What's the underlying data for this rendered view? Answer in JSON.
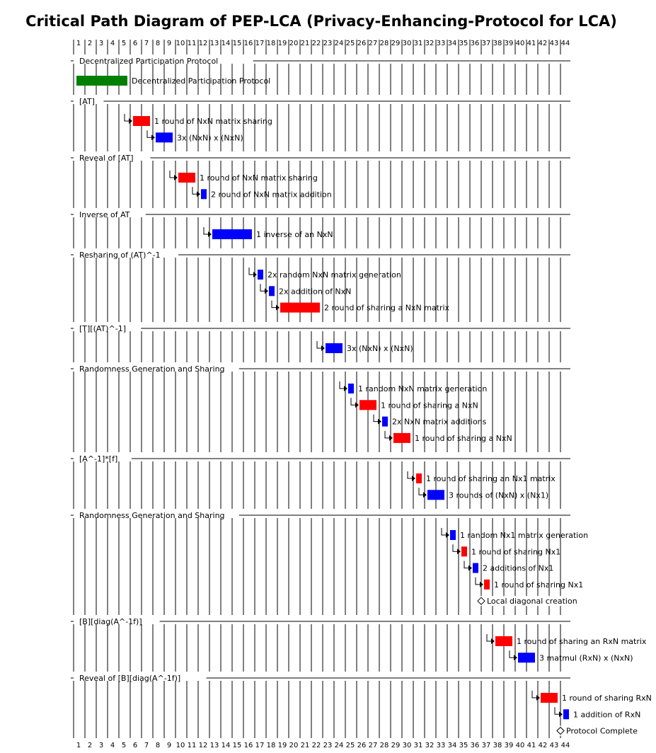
{
  "chart_data": {
    "type": "gantt",
    "title": "Critical Path Diagram of PEP-LCA (Privacy-Enhancing-Protocol for LCA)",
    "xlim": [
      1,
      44
    ],
    "ticks": [
      1,
      2,
      3,
      4,
      5,
      6,
      7,
      8,
      9,
      10,
      11,
      12,
      13,
      14,
      15,
      16,
      17,
      18,
      19,
      20,
      21,
      22,
      23,
      24,
      25,
      26,
      27,
      28,
      29,
      30,
      31,
      32,
      33,
      34,
      35,
      36,
      37,
      38,
      39,
      40,
      41,
      42,
      43,
      44
    ],
    "colors": {
      "communication": "#ff0000",
      "computation": "#0000ff",
      "participation": "#008000"
    },
    "sections": [
      {
        "name": "Decentralized Participation Protocol",
        "tasks": [
          {
            "label": "Decentralized Participation Protocol",
            "start": 1,
            "end": 5.5,
            "color": "#008000",
            "arrow": false
          }
        ]
      },
      {
        "name": "[AT]",
        "tasks": [
          {
            "label": "1 round of NxN matrix sharing",
            "start": 6,
            "end": 7.5,
            "color": "#ff0000",
            "arrow": true
          },
          {
            "label": "3x (NxN) x (NxN)",
            "start": 8,
            "end": 9.5,
            "color": "#0000ff",
            "arrow": true
          }
        ]
      },
      {
        "name": "Reveal of [AT]",
        "tasks": [
          {
            "label": "1 round of NxN matrix sharing",
            "start": 10,
            "end": 11.5,
            "color": "#ff0000",
            "arrow": true
          },
          {
            "label": "2 round of NxN matrix addition",
            "start": 12,
            "end": 12.5,
            "color": "#0000ff",
            "arrow": true
          }
        ]
      },
      {
        "name": "Inverse of AT",
        "tasks": [
          {
            "label": "1 inverse of an NxN",
            "start": 13,
            "end": 16.5,
            "color": "#0000ff",
            "arrow": true
          }
        ]
      },
      {
        "name": "Resharing of (AT)^-1",
        "tasks": [
          {
            "label": "2x random NxN matrix generation",
            "start": 17,
            "end": 17.5,
            "color": "#0000ff",
            "arrow": true
          },
          {
            "label": "2x addition of NxN",
            "start": 18,
            "end": 18.5,
            "color": "#0000ff",
            "arrow": true
          },
          {
            "label": "2 round of sharing a NxN matrix",
            "start": 19,
            "end": 22.5,
            "color": "#ff0000",
            "arrow": true
          }
        ]
      },
      {
        "name": "[T][(AT)^-1]",
        "tasks": [
          {
            "label": "3x (NxN) x (NxN)",
            "start": 23,
            "end": 24.5,
            "color": "#0000ff",
            "arrow": true
          }
        ]
      },
      {
        "name": "Randomness Generation and Sharing",
        "tasks": [
          {
            "label": "1 random NxN matrix generation",
            "start": 25,
            "end": 25.5,
            "color": "#0000ff",
            "arrow": true
          },
          {
            "label": "1 round of sharing a NxN",
            "start": 26,
            "end": 27.5,
            "color": "#ff0000",
            "arrow": true
          },
          {
            "label": "2x NxN matrix additions",
            "start": 28,
            "end": 28.5,
            "color": "#0000ff",
            "arrow": true
          },
          {
            "label": "1 round of sharing a NxN",
            "start": 29,
            "end": 30.5,
            "color": "#ff0000",
            "arrow": true
          }
        ]
      },
      {
        "name": "[A^-1]*[f]",
        "tasks": [
          {
            "label": "1 round of sharing an Nx1 matrix",
            "start": 31,
            "end": 31.5,
            "color": "#ff0000",
            "arrow": true
          },
          {
            "label": "3 rounds of (NxN) x (Nx1)",
            "start": 32,
            "end": 33.5,
            "color": "#0000ff",
            "arrow": true
          }
        ]
      },
      {
        "name": "Randomness Generation and Sharing",
        "tasks": [
          {
            "label": "1 random Nx1 matrix generation",
            "start": 34,
            "end": 34.5,
            "color": "#0000ff",
            "arrow": true
          },
          {
            "label": "1 round of sharing Nx1",
            "start": 35,
            "end": 35.5,
            "color": "#ff0000",
            "arrow": true
          },
          {
            "label": "2 additions of Nx1",
            "start": 36,
            "end": 36.5,
            "color": "#0000ff",
            "arrow": true
          },
          {
            "label": "1 round of sharing Nx1",
            "start": 37,
            "end": 37.5,
            "color": "#ff0000",
            "arrow": true
          },
          {
            "label": "Local diagonal creation",
            "start": 37,
            "end": 37,
            "milestone": true,
            "arrow": false
          }
        ]
      },
      {
        "name": "[B][diag(A^-1f)]",
        "tasks": [
          {
            "label": "1 round of sharing an RxN matrix",
            "start": 38,
            "end": 39.5,
            "color": "#ff0000",
            "arrow": true
          },
          {
            "label": "3 matmul (RxN) x (NxN)",
            "start": 40,
            "end": 41.5,
            "color": "#0000ff",
            "arrow": true
          }
        ]
      },
      {
        "name": "Reveal of [B][diag(A^-1f)]",
        "tasks": [
          {
            "label": "1 round of sharing RxN",
            "start": 42,
            "end": 43.5,
            "color": "#ff0000",
            "arrow": true
          },
          {
            "label": "1 addition of RxN",
            "start": 44,
            "end": 44.5,
            "color": "#0000ff",
            "arrow": true
          },
          {
            "label": "Protocol Complete",
            "start": 44,
            "end": 44,
            "milestone": true,
            "arrow": false
          }
        ]
      }
    ]
  }
}
